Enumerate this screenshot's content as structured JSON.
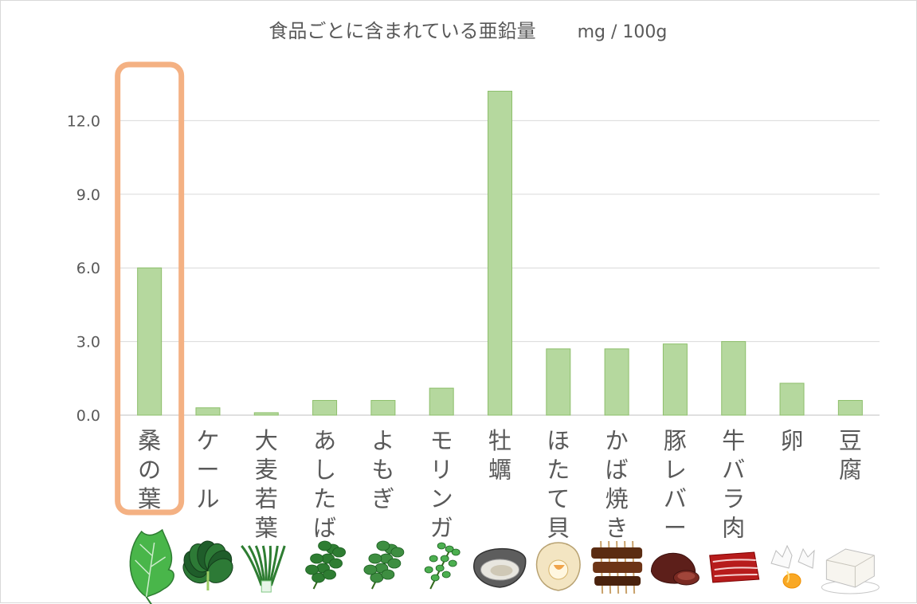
{
  "chart_data": {
    "type": "bar",
    "title": "食品ごとに含まれている亜鉛量",
    "unit": "mg / 100g",
    "xlabel": "",
    "ylabel": "",
    "ylim": [
      0,
      13.5
    ],
    "yticks": [
      "0.0",
      "3.0",
      "6.0",
      "9.0",
      "12.0"
    ],
    "grid": true,
    "categories": [
      "桑の葉",
      "ケール",
      "大麦若葉",
      "あしたば",
      "よもぎ",
      "モリンガ",
      "牡蠣",
      "ほたて貝",
      "かば焼き",
      "豚レバー",
      "牛バラ肉",
      "卵",
      "豆腐"
    ],
    "values": [
      6.0,
      0.3,
      0.1,
      0.6,
      0.6,
      1.1,
      13.2,
      2.7,
      2.7,
      2.9,
      3.0,
      1.3,
      0.6
    ],
    "highlight_index": 0,
    "highlight_color": "#F4B183",
    "bar_color": "#B5D89E",
    "bar_edge_color": "#8DBF6B",
    "icons": [
      "mulberry-leaf-icon",
      "kale-icon",
      "barley-grass-icon",
      "ashitaba-icon",
      "mugwort-icon",
      "moringa-icon",
      "oyster-icon",
      "scallop-icon",
      "grilled-eel-icon",
      "pork-liver-icon",
      "beef-belly-icon",
      "egg-icon",
      "tofu-icon"
    ]
  }
}
